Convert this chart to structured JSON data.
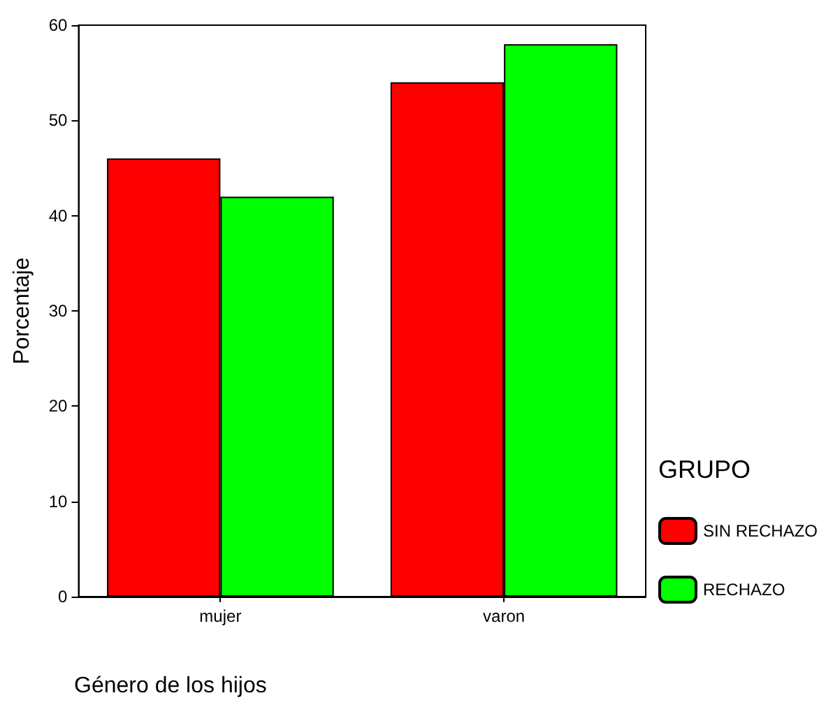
{
  "chart_data": {
    "type": "bar",
    "xlabel": "Género de los hijos",
    "ylabel": "Porcentaje",
    "legend_title": "GRUPO",
    "categories": [
      "mujer",
      "varon"
    ],
    "series": [
      {
        "name": "SIN RECHAZO",
        "color": "#ff0000",
        "values": [
          46,
          54
        ]
      },
      {
        "name": "RECHAZO",
        "color": "#00ff00",
        "values": [
          42,
          58
        ]
      }
    ],
    "ylim": [
      0,
      60
    ],
    "yticks": [
      0,
      10,
      20,
      30,
      40,
      50,
      60
    ],
    "grid": false,
    "legend": "right"
  }
}
